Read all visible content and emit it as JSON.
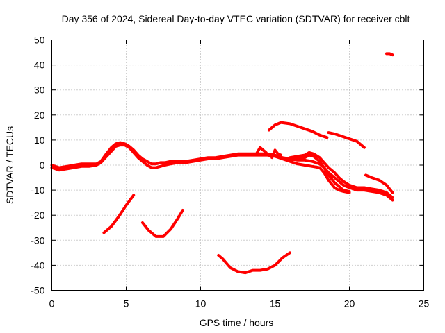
{
  "chart_data": {
    "type": "scatter",
    "title": "Day 356 of 2024, Sidereal Day-to-day VTEC variation (SDTVAR) for receiver cblt",
    "xlabel": "GPS time / hours",
    "ylabel": "SDTVAR / TECUs",
    "xlim": [
      0,
      25
    ],
    "ylim": [
      -50,
      50
    ],
    "xticks": [
      "0",
      "5",
      "10",
      "15",
      "20",
      "25"
    ],
    "yticks": [
      "-50",
      "-40",
      "-30",
      "-20",
      "-10",
      "0",
      "10",
      "20",
      "30",
      "40",
      "50"
    ],
    "grid": true,
    "color": "#ff0000",
    "series": [
      {
        "name": "trace-1",
        "x": [
          0.0,
          0.5,
          1.0,
          1.5,
          2.0,
          2.5,
          3.0,
          3.3,
          3.6,
          4.0,
          4.3,
          4.6,
          4.9,
          5.2,
          5.5,
          5.8,
          6.1,
          6.4,
          6.7,
          7.0,
          7.3,
          7.6,
          8.0,
          8.5,
          9.0,
          9.5,
          10.0,
          10.5,
          11.0,
          11.5,
          12.0,
          12.5,
          13.0,
          13.5,
          14.0,
          14.5,
          15.0,
          15.5,
          16.0,
          16.5,
          17.0,
          17.5,
          18.0,
          18.3,
          18.6,
          19.0,
          19.3,
          19.6,
          20.0
        ],
        "y": [
          0,
          -1,
          -0.5,
          0,
          0.5,
          0.5,
          0.5,
          1.5,
          4,
          7,
          8.5,
          9,
          8.5,
          7.5,
          6,
          4,
          2.5,
          1.5,
          0.5,
          0.5,
          1,
          1,
          1.5,
          1.5,
          1.5,
          2,
          2.5,
          3,
          3,
          3.5,
          4,
          4.5,
          4.5,
          4.5,
          4.5,
          4.5,
          4,
          3,
          2.5,
          2,
          2,
          1.5,
          0.5,
          -1,
          -4,
          -7,
          -8.5,
          -10,
          -10.5
        ]
      },
      {
        "name": "trace-2",
        "x": [
          0.0,
          0.5,
          1.0,
          1.5,
          2.0,
          2.5,
          3.0,
          3.3,
          3.6,
          4.0,
          4.3,
          4.6,
          4.9,
          5.2,
          5.5,
          5.8,
          6.1,
          6.4,
          6.7,
          7.0,
          7.3,
          7.6,
          8.0,
          8.5,
          9.0,
          9.5,
          10.0,
          10.5,
          11.0,
          11.5,
          12.0,
          12.5,
          13.0,
          13.5,
          14.0,
          14.5,
          15.0,
          15.5,
          16.0,
          16.5,
          17.0,
          17.5,
          18.0,
          18.3,
          18.6,
          19.0,
          19.3,
          19.6,
          20.0
        ],
        "y": [
          -1,
          -2,
          -1.5,
          -1,
          -0.5,
          -0.5,
          0,
          1,
          3,
          5.5,
          7.5,
          8,
          8,
          7,
          5,
          3,
          1.5,
          0,
          -1,
          -1,
          -0.5,
          0,
          0.5,
          1,
          1,
          1.5,
          2,
          2.5,
          2.5,
          3,
          3.5,
          4,
          4,
          4,
          4,
          4,
          3.5,
          2.5,
          1.5,
          0.5,
          0,
          -0.5,
          -1,
          -3,
          -6,
          -9,
          -10,
          -10.5,
          -11
        ]
      },
      {
        "name": "trace-3",
        "x": [
          16.0,
          16.5,
          17.0,
          17.3,
          17.6,
          18.0,
          18.3,
          18.6,
          19.0,
          19.3,
          19.6,
          20.0,
          20.5,
          21.0,
          21.5,
          22.0,
          22.5,
          22.9
        ],
        "y": [
          3,
          3.5,
          4,
          5,
          4.5,
          3,
          1,
          -1,
          -3,
          -5,
          -6.5,
          -8,
          -9,
          -9,
          -9.5,
          -10,
          -11,
          -13
        ]
      },
      {
        "name": "trace-4",
        "x": [
          16.0,
          16.5,
          17.0,
          17.3,
          17.6,
          18.0,
          18.3,
          18.6,
          19.0,
          19.3,
          19.6,
          20.0,
          20.5,
          21.0,
          21.5,
          22.0,
          22.5,
          22.9
        ],
        "y": [
          2,
          2.5,
          3,
          4,
          3.5,
          1.5,
          -1,
          -3,
          -5,
          -6.5,
          -8,
          -9,
          -10,
          -10,
          -10.5,
          -11,
          -12,
          -14
        ]
      },
      {
        "name": "trace-5",
        "x": [
          13.8,
          14.0,
          14.2,
          14.4
        ],
        "y": [
          5,
          7,
          6,
          5
        ]
      },
      {
        "name": "trace-6",
        "x": [
          14.8,
          15.0,
          15.2,
          15.4
        ],
        "y": [
          3,
          6,
          4.5,
          4
        ]
      },
      {
        "name": "trace-7",
        "x": [
          21.1,
          21.5,
          22.0,
          22.5,
          22.9
        ],
        "y": [
          -4,
          -5,
          -6,
          -8,
          -11
        ]
      },
      {
        "name": "trace-8",
        "x": [
          14.6,
          15.0,
          15.4,
          16.0,
          16.5,
          17.0,
          17.5,
          18.0,
          18.5
        ],
        "y": [
          14,
          16,
          17,
          16.5,
          15.5,
          14.5,
          13.5,
          12,
          11
        ]
      },
      {
        "name": "trace-9",
        "x": [
          18.6,
          19.0,
          19.5,
          20.0,
          20.5,
          21.0
        ],
        "y": [
          13,
          12.5,
          11.5,
          10.5,
          9.5,
          7
        ]
      },
      {
        "name": "trace-10",
        "x": [
          3.5,
          4.0,
          4.5,
          5.0,
          5.5
        ],
        "y": [
          -27,
          -24.5,
          -20.5,
          -16,
          -12
        ]
      },
      {
        "name": "trace-11",
        "x": [
          6.1,
          6.5,
          7.0,
          7.5,
          8.0,
          8.5,
          8.8
        ],
        "y": [
          -23,
          -26,
          -28.5,
          -28.5,
          -25.5,
          -21,
          -18
        ]
      },
      {
        "name": "trace-12",
        "x": [
          11.2,
          11.5,
          12.0,
          12.5,
          13.0,
          13.5,
          14.0,
          14.5,
          15.0,
          15.5,
          16.0
        ],
        "y": [
          -36,
          -37.5,
          -41,
          -42.5,
          -43,
          -42,
          -42,
          -41.5,
          -40,
          -37,
          -35
        ]
      },
      {
        "name": "trace-13",
        "x": [
          22.5,
          22.7,
          22.9
        ],
        "y": [
          44.5,
          44.5,
          44
        ]
      }
    ]
  }
}
